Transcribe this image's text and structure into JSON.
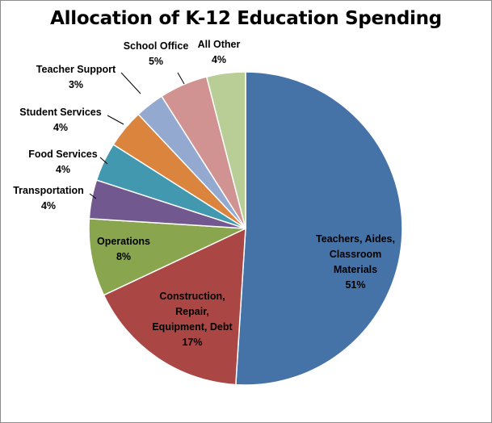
{
  "chart_data": {
    "type": "pie",
    "title": "Allocation of K-12 Education Spending",
    "slices": [
      {
        "label": "Teachers, Aides, Classroom Materials",
        "value": 51,
        "value_label": "51%",
        "color": "#4572a7"
      },
      {
        "label": "Construction, Repair, Equipment, Debt",
        "value": 17,
        "value_label": "17%",
        "color": "#aa4643"
      },
      {
        "label": "Operations",
        "value": 8,
        "value_label": "8%",
        "color": "#89a54e"
      },
      {
        "label": "Transportation",
        "value": 4,
        "value_label": "4%",
        "color": "#71588f"
      },
      {
        "label": "Food Services",
        "value": 4,
        "value_label": "4%",
        "color": "#4198af"
      },
      {
        "label": "Student Services",
        "value": 4,
        "value_label": "4%",
        "color": "#db843d"
      },
      {
        "label": "Teacher Support",
        "value": 3,
        "value_label": "3%",
        "color": "#93a9cf"
      },
      {
        "label": "School Office",
        "value": 5,
        "value_label": "5%",
        "color": "#d19392"
      },
      {
        "label": "All Other",
        "value": 4,
        "value_label": "4%",
        "color": "#b9cd96"
      }
    ]
  }
}
